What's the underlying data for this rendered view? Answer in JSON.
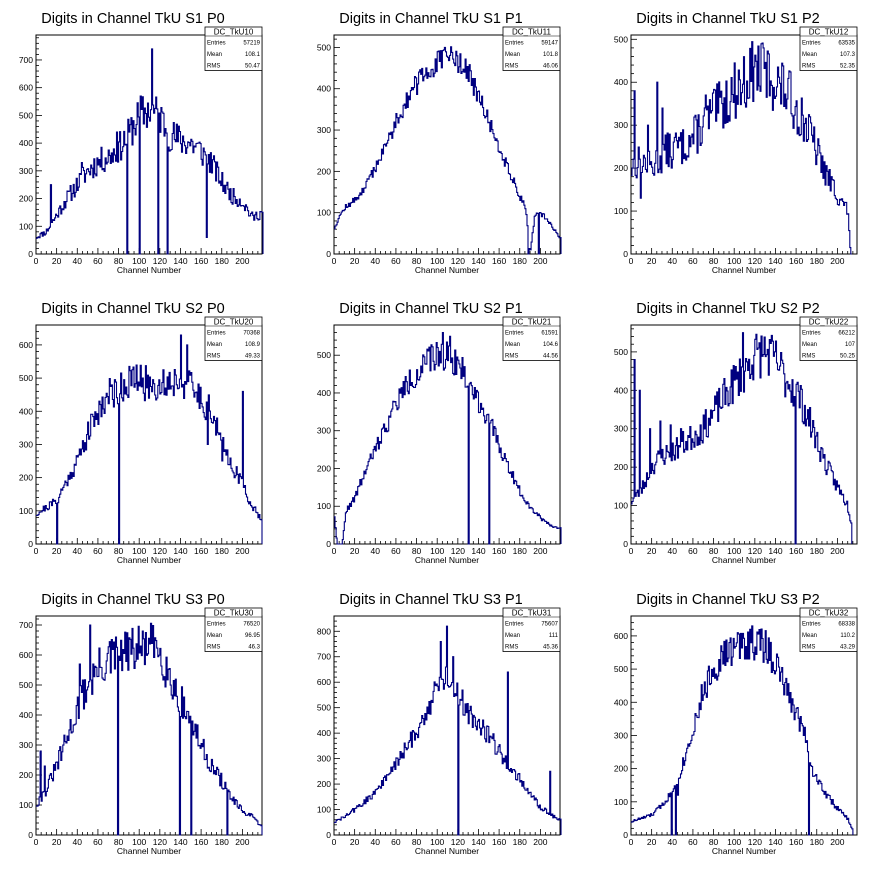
{
  "chart_data": [
    {
      "type": "bar",
      "title": "Digits in Channel TkU S1 P0",
      "xlabel": "Channel Number",
      "ylabel": "",
      "xlim": [
        0,
        219
      ],
      "ylim": [
        0,
        790
      ],
      "xticks": [
        0,
        20,
        40,
        60,
        80,
        100,
        120,
        140,
        160,
        180,
        200
      ],
      "yticks": [
        100,
        200,
        300,
        400,
        500,
        600,
        700
      ],
      "stats": {
        "name": "DC_TkU10",
        "entries": "57219",
        "mean": "108.1",
        "rms": "50.47"
      },
      "envelope": [
        [
          0,
          60
        ],
        [
          10,
          80
        ],
        [
          20,
          140
        ],
        [
          30,
          200
        ],
        [
          40,
          250
        ],
        [
          50,
          300
        ],
        [
          60,
          330
        ],
        [
          70,
          350
        ],
        [
          80,
          380
        ],
        [
          90,
          430
        ],
        [
          100,
          500
        ],
        [
          110,
          520
        ],
        [
          120,
          500
        ],
        [
          130,
          430
        ],
        [
          140,
          410
        ],
        [
          150,
          400
        ],
        [
          160,
          370
        ],
        [
          170,
          330
        ],
        [
          180,
          260
        ],
        [
          190,
          210
        ],
        [
          200,
          190
        ],
        [
          210,
          130
        ],
        [
          219,
          150
        ]
      ],
      "spikes": [
        [
          14,
          250
        ],
        [
          44,
          330
        ],
        [
          78,
          440
        ],
        [
          88,
          0
        ],
        [
          100,
          0
        ],
        [
          112,
          740
        ],
        [
          118,
          0
        ],
        [
          127,
          0
        ],
        [
          165,
          60
        ]
      ],
      "seed": 11,
      "noise": 0.09
    },
    {
      "type": "bar",
      "title": "Digits in Channel TkU S1 P1",
      "xlabel": "Channel Number",
      "ylabel": "",
      "xlim": [
        0,
        219
      ],
      "ylim": [
        0,
        530
      ],
      "xticks": [
        0,
        20,
        40,
        60,
        80,
        100,
        120,
        140,
        160,
        180,
        200
      ],
      "yticks": [
        100,
        200,
        300,
        400,
        500
      ],
      "stats": {
        "name": "DC_TkU11",
        "entries": "59147",
        "mean": "101.8",
        "rms": "46.06"
      },
      "envelope": [
        [
          0,
          60
        ],
        [
          5,
          90
        ],
        [
          10,
          110
        ],
        [
          20,
          130
        ],
        [
          30,
          160
        ],
        [
          40,
          210
        ],
        [
          50,
          260
        ],
        [
          60,
          320
        ],
        [
          70,
          370
        ],
        [
          80,
          410
        ],
        [
          90,
          440
        ],
        [
          100,
          460
        ],
        [
          110,
          480
        ],
        [
          120,
          470
        ],
        [
          130,
          440
        ],
        [
          140,
          380
        ],
        [
          150,
          320
        ],
        [
          160,
          260
        ],
        [
          170,
          200
        ],
        [
          180,
          140
        ],
        [
          186,
          110
        ],
        [
          190,
          0
        ],
        [
          195,
          100
        ],
        [
          205,
          90
        ],
        [
          219,
          40
        ]
      ],
      "spikes": [
        [
          188,
          0
        ],
        [
          198,
          0
        ]
      ],
      "seed": 12,
      "noise": 0.04
    },
    {
      "type": "bar",
      "title": "Digits in Channel TkU S1 P2",
      "xlabel": "Channel Number",
      "ylabel": "",
      "xlim": [
        0,
        219
      ],
      "ylim": [
        0,
        510
      ],
      "xticks": [
        0,
        20,
        40,
        60,
        80,
        100,
        120,
        140,
        160,
        180,
        200
      ],
      "yticks": [
        100,
        200,
        300,
        400,
        500
      ],
      "stats": {
        "name": "DC_TkU12",
        "entries": "63535",
        "mean": "107.3",
        "rms": "52.35"
      },
      "envelope": [
        [
          0,
          200
        ],
        [
          10,
          220
        ],
        [
          20,
          200
        ],
        [
          30,
          230
        ],
        [
          40,
          250
        ],
        [
          50,
          250
        ],
        [
          60,
          270
        ],
        [
          70,
          300
        ],
        [
          80,
          330
        ],
        [
          90,
          350
        ],
        [
          100,
          380
        ],
        [
          110,
          400
        ],
        [
          120,
          430
        ],
        [
          130,
          420
        ],
        [
          140,
          400
        ],
        [
          150,
          380
        ],
        [
          160,
          340
        ],
        [
          170,
          300
        ],
        [
          180,
          240
        ],
        [
          190,
          180
        ],
        [
          200,
          140
        ],
        [
          210,
          100
        ],
        [
          213,
          0
        ]
      ],
      "spikes": [
        [
          3,
          380
        ],
        [
          9,
          130
        ],
        [
          16,
          300
        ],
        [
          25,
          400
        ],
        [
          30,
          340
        ],
        [
          39,
          200
        ],
        [
          72,
          370
        ],
        [
          128,
          480
        ]
      ],
      "seed": 13,
      "noise": 0.11
    },
    {
      "type": "bar",
      "title": "Digits in Channel TkU S2 P0",
      "xlabel": "Channel Number",
      "ylabel": "",
      "xlim": [
        0,
        219
      ],
      "ylim": [
        0,
        660
      ],
      "xticks": [
        0,
        20,
        40,
        60,
        80,
        100,
        120,
        140,
        160,
        180,
        200
      ],
      "yticks": [
        100,
        200,
        300,
        400,
        500,
        600
      ],
      "stats": {
        "name": "DC_TkU20",
        "entries": "70368",
        "mean": "108.9",
        "rms": "49.33"
      },
      "envelope": [
        [
          0,
          90
        ],
        [
          10,
          110
        ],
        [
          20,
          130
        ],
        [
          30,
          190
        ],
        [
          40,
          250
        ],
        [
          50,
          330
        ],
        [
          60,
          400
        ],
        [
          70,
          450
        ],
        [
          80,
          470
        ],
        [
          90,
          490
        ],
        [
          100,
          490
        ],
        [
          110,
          480
        ],
        [
          120,
          480
        ],
        [
          130,
          490
        ],
        [
          140,
          500
        ],
        [
          150,
          470
        ],
        [
          160,
          440
        ],
        [
          170,
          400
        ],
        [
          180,
          300
        ],
        [
          190,
          240
        ],
        [
          200,
          180
        ],
        [
          210,
          110
        ],
        [
          218,
          80
        ]
      ],
      "spikes": [
        [
          20,
          0
        ],
        [
          80,
          0
        ],
        [
          140,
          630
        ],
        [
          146,
          600
        ],
        [
          166,
          300
        ],
        [
          180,
          250
        ],
        [
          200,
          460
        ]
      ],
      "seed": 21,
      "noise": 0.07
    },
    {
      "type": "bar",
      "title": "Digits in Channel TkU S2 P1",
      "xlabel": "Channel Number",
      "ylabel": "",
      "xlim": [
        0,
        219
      ],
      "ylim": [
        0,
        580
      ],
      "xticks": [
        0,
        20,
        40,
        60,
        80,
        100,
        120,
        140,
        160,
        180,
        200
      ],
      "yticks": [
        100,
        200,
        300,
        400,
        500
      ],
      "stats": {
        "name": "DC_TkU21",
        "entries": "61591",
        "mean": "104.6",
        "rms": "44.56"
      },
      "envelope": [
        [
          0,
          90
        ],
        [
          3,
          0
        ],
        [
          8,
          0
        ],
        [
          12,
          90
        ],
        [
          20,
          120
        ],
        [
          30,
          190
        ],
        [
          40,
          250
        ],
        [
          50,
          310
        ],
        [
          60,
          370
        ],
        [
          70,
          420
        ],
        [
          80,
          450
        ],
        [
          90,
          480
        ],
        [
          100,
          500
        ],
        [
          110,
          500
        ],
        [
          120,
          480
        ],
        [
          130,
          430
        ],
        [
          140,
          380
        ],
        [
          150,
          330
        ],
        [
          160,
          260
        ],
        [
          170,
          200
        ],
        [
          180,
          140
        ],
        [
          190,
          100
        ],
        [
          200,
          70
        ],
        [
          210,
          50
        ],
        [
          219,
          40
        ]
      ],
      "spikes": [
        [
          105,
          560
        ],
        [
          112,
          550
        ],
        [
          130,
          0
        ],
        [
          150,
          0
        ]
      ],
      "seed": 22,
      "noise": 0.05
    },
    {
      "type": "bar",
      "title": "Digits in Channel TkU S2 P2",
      "xlabel": "Channel Number",
      "ylabel": "",
      "xlim": [
        0,
        219
      ],
      "ylim": [
        0,
        570
      ],
      "xticks": [
        0,
        20,
        40,
        60,
        80,
        100,
        120,
        140,
        160,
        180,
        200
      ],
      "yticks": [
        100,
        200,
        300,
        400,
        500
      ],
      "stats": {
        "name": "DC_TkU22",
        "entries": "66212",
        "mean": "107",
        "rms": "50.25"
      },
      "envelope": [
        [
          0,
          110
        ],
        [
          10,
          140
        ],
        [
          20,
          200
        ],
        [
          30,
          230
        ],
        [
          40,
          240
        ],
        [
          50,
          260
        ],
        [
          60,
          280
        ],
        [
          70,
          300
        ],
        [
          80,
          340
        ],
        [
          90,
          380
        ],
        [
          100,
          420
        ],
        [
          110,
          450
        ],
        [
          120,
          490
        ],
        [
          130,
          500
        ],
        [
          140,
          480
        ],
        [
          150,
          430
        ],
        [
          160,
          400
        ],
        [
          170,
          340
        ],
        [
          180,
          270
        ],
        [
          190,
          200
        ],
        [
          200,
          150
        ],
        [
          210,
          100
        ],
        [
          213,
          60
        ]
      ],
      "spikes": [
        [
          3,
          480
        ],
        [
          8,
          400
        ],
        [
          18,
          300
        ],
        [
          28,
          320
        ],
        [
          38,
          310
        ],
        [
          48,
          300
        ],
        [
          108,
          550
        ],
        [
          159,
          0
        ]
      ],
      "seed": 23,
      "noise": 0.08
    },
    {
      "type": "bar",
      "title": "Digits in Channel TkU S3 P0",
      "xlabel": "Channel Number",
      "ylabel": "",
      "xlim": [
        0,
        219
      ],
      "ylim": [
        0,
        730
      ],
      "xticks": [
        0,
        20,
        40,
        60,
        80,
        100,
        120,
        140,
        160,
        180,
        200
      ],
      "yticks": [
        100,
        200,
        300,
        400,
        500,
        600,
        700
      ],
      "stats": {
        "name": "DC_TkU30",
        "entries": "76520",
        "mean": "96.95",
        "rms": "46.3"
      },
      "envelope": [
        [
          0,
          100
        ],
        [
          10,
          150
        ],
        [
          20,
          230
        ],
        [
          30,
          320
        ],
        [
          40,
          420
        ],
        [
          50,
          500
        ],
        [
          60,
          550
        ],
        [
          70,
          580
        ],
        [
          80,
          600
        ],
        [
          90,
          610
        ],
        [
          100,
          620
        ],
        [
          110,
          630
        ],
        [
          120,
          620
        ],
        [
          130,
          520
        ],
        [
          140,
          450
        ],
        [
          150,
          380
        ],
        [
          160,
          300
        ],
        [
          170,
          230
        ],
        [
          180,
          180
        ],
        [
          190,
          120
        ],
        [
          200,
          80
        ],
        [
          210,
          60
        ],
        [
          218,
          30
        ]
      ],
      "spikes": [
        [
          4,
          280
        ],
        [
          8,
          230
        ],
        [
          42,
          570
        ],
        [
          52,
          700
        ],
        [
          79,
          0
        ],
        [
          139,
          0
        ],
        [
          150,
          0
        ],
        [
          185,
          0
        ]
      ],
      "seed": 31,
      "noise": 0.08
    },
    {
      "type": "bar",
      "title": "Digits in Channel TkU S3 P1",
      "xlabel": "Channel Number",
      "ylabel": "",
      "xlim": [
        0,
        219
      ],
      "ylim": [
        0,
        860
      ],
      "xticks": [
        0,
        20,
        40,
        60,
        80,
        100,
        120,
        140,
        160,
        180,
        200
      ],
      "yticks": [
        100,
        200,
        300,
        400,
        500,
        600,
        700,
        800
      ],
      "stats": {
        "name": "DC_TkU31",
        "entries": "75607",
        "mean": "111",
        "rms": "45.36"
      },
      "envelope": [
        [
          0,
          50
        ],
        [
          10,
          70
        ],
        [
          20,
          100
        ],
        [
          30,
          130
        ],
        [
          40,
          170
        ],
        [
          50,
          220
        ],
        [
          60,
          280
        ],
        [
          70,
          340
        ],
        [
          80,
          410
        ],
        [
          90,
          480
        ],
        [
          100,
          580
        ],
        [
          110,
          630
        ],
        [
          120,
          560
        ],
        [
          130,
          480
        ],
        [
          140,
          440
        ],
        [
          150,
          390
        ],
        [
          160,
          330
        ],
        [
          170,
          270
        ],
        [
          180,
          220
        ],
        [
          190,
          160
        ],
        [
          200,
          110
        ],
        [
          210,
          80
        ],
        [
          219,
          60
        ]
      ],
      "spikes": [
        [
          103,
          760
        ],
        [
          109,
          820
        ],
        [
          115,
          700
        ],
        [
          168,
          640
        ],
        [
          209,
          250
        ],
        [
          120,
          0
        ]
      ],
      "seed": 32,
      "noise": 0.06
    },
    {
      "type": "bar",
      "title": "Digits in Channel TkU S3 P2",
      "xlabel": "Channel Number",
      "ylabel": "",
      "xlim": [
        0,
        219
      ],
      "ylim": [
        0,
        660
      ],
      "xticks": [
        0,
        20,
        40,
        60,
        80,
        100,
        120,
        140,
        160,
        180,
        200
      ],
      "yticks": [
        100,
        200,
        300,
        400,
        500,
        600
      ],
      "stats": {
        "name": "DC_TkU32",
        "entries": "68338",
        "mean": "110.2",
        "rms": "43.29"
      },
      "envelope": [
        [
          0,
          40
        ],
        [
          10,
          50
        ],
        [
          20,
          60
        ],
        [
          30,
          90
        ],
        [
          40,
          130
        ],
        [
          50,
          210
        ],
        [
          60,
          320
        ],
        [
          70,
          430
        ],
        [
          80,
          500
        ],
        [
          90,
          540
        ],
        [
          100,
          560
        ],
        [
          110,
          580
        ],
        [
          120,
          580
        ],
        [
          130,
          570
        ],
        [
          140,
          520
        ],
        [
          150,
          440
        ],
        [
          160,
          370
        ],
        [
          170,
          300
        ],
        [
          175,
          200
        ],
        [
          180,
          170
        ],
        [
          190,
          120
        ],
        [
          200,
          80
        ],
        [
          210,
          50
        ],
        [
          214,
          20
        ]
      ],
      "spikes": [
        [
          39,
          0
        ],
        [
          43,
          0
        ],
        [
          45,
          120
        ],
        [
          172,
          0
        ],
        [
          115,
          620
        ]
      ],
      "seed": 33,
      "noise": 0.06
    }
  ]
}
